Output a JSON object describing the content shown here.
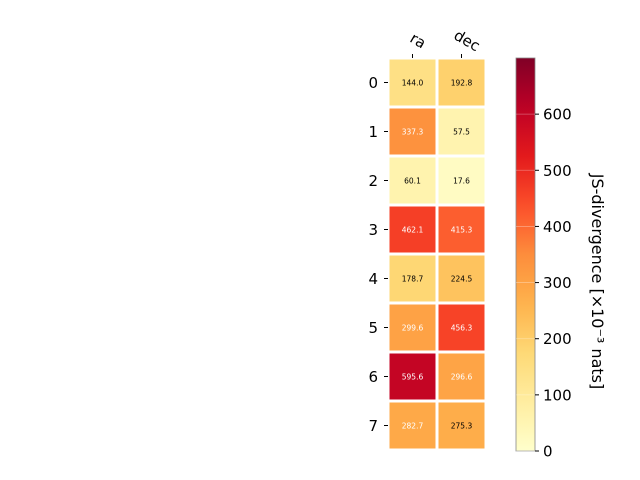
{
  "chart_data": {
    "type": "heatmap",
    "columns": [
      "ra",
      "dec"
    ],
    "rows": [
      "0",
      "1",
      "2",
      "3",
      "4",
      "5",
      "6",
      "7"
    ],
    "values": [
      [
        144.0,
        192.8
      ],
      [
        337.3,
        57.5
      ],
      [
        60.1,
        17.6
      ],
      [
        462.1,
        415.3
      ],
      [
        178.7,
        224.5
      ],
      [
        299.6,
        456.3
      ],
      [
        595.6,
        296.6
      ],
      [
        282.7,
        275.3
      ]
    ],
    "value_labels": [
      [
        "144.0",
        "192.8"
      ],
      [
        "337.3",
        "57.5"
      ],
      [
        "60.1",
        "17.6"
      ],
      [
        "462.1",
        "415.3"
      ],
      [
        "178.7",
        "224.5"
      ],
      [
        "299.6",
        "456.3"
      ],
      [
        "595.6",
        "296.6"
      ],
      [
        "282.7",
        "275.3"
      ]
    ],
    "colorbar": {
      "label": "JS-divergence [×10⁻³ nats]",
      "range": [
        0,
        700
      ],
      "ticks": [
        0,
        100,
        200,
        300,
        400,
        500,
        600
      ],
      "tick_labels": [
        "0",
        "100",
        "200",
        "300",
        "400",
        "500",
        "600"
      ],
      "colormap": "YlOrRd"
    },
    "grid": false
  }
}
